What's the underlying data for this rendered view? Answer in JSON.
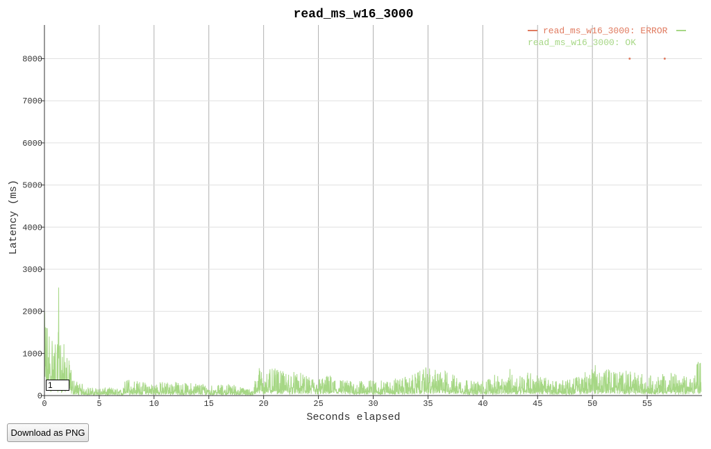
{
  "chart_data": {
    "type": "line",
    "title": "read_ms_w16_3000",
    "xlabel": "Seconds elapsed",
    "ylabel": "Latency (ms)",
    "xlim": [
      0,
      60
    ],
    "ylim": [
      0,
      8800
    ],
    "x_ticks": [
      0,
      5,
      10,
      15,
      20,
      25,
      30,
      35,
      40,
      45,
      50,
      55
    ],
    "y_ticks": [
      0,
      1000,
      2000,
      3000,
      4000,
      5000,
      6000,
      7000,
      8000
    ],
    "grid": true,
    "legend_position": "top-right",
    "series": [
      {
        "name": "read_ms_w16_3000: ERROR",
        "color": "#e07a5f",
        "style": "points",
        "x": [
          53.4,
          56.6
        ],
        "y": [
          8000,
          8000
        ]
      },
      {
        "name": "read_ms_w16_3000: OK",
        "color": "#a6d785",
        "style": "dense-line",
        "x": [
          0,
          0.2,
          0.5,
          0.8,
          1.0,
          1.2,
          1.3,
          1.5,
          1.8,
          2.0,
          2.3,
          2.6,
          3,
          4,
          5,
          6,
          7,
          7.5,
          8,
          9,
          10,
          11,
          12,
          13,
          14,
          15,
          16,
          17,
          18,
          19,
          19.5,
          20,
          21,
          22,
          23,
          24,
          25,
          26,
          27,
          28,
          29,
          30,
          31,
          32,
          33,
          34,
          35,
          35.5,
          36,
          37,
          38,
          39,
          40,
          41,
          42,
          42.5,
          43,
          44,
          45,
          46,
          47,
          48,
          49,
          50,
          51,
          52,
          53,
          54,
          55,
          56,
          57,
          58,
          59,
          59.5
        ],
        "y": [
          2000,
          1900,
          1600,
          1500,
          1400,
          1200,
          2800,
          1300,
          1250,
          1000,
          800,
          400,
          350,
          200,
          180,
          200,
          150,
          450,
          380,
          330,
          300,
          350,
          330,
          300,
          320,
          280,
          250,
          300,
          200,
          150,
          700,
          600,
          650,
          550,
          600,
          450,
          420,
          500,
          400,
          350,
          350,
          380,
          350,
          420,
          450,
          550,
          700,
          600,
          650,
          550,
          450,
          350,
          350,
          500,
          400,
          650,
          500,
          600,
          500,
          400,
          350,
          400,
          500,
          750,
          650,
          600,
          600,
          550,
          500,
          450,
          600,
          450,
          500,
          820
        ]
      }
    ]
  },
  "controls": {
    "zoom_value": "1",
    "download_label": "Download as PNG"
  }
}
